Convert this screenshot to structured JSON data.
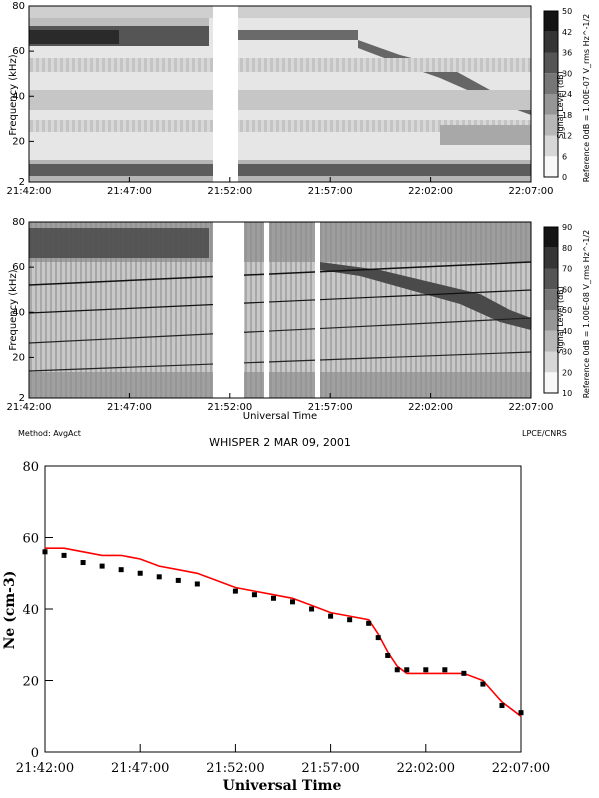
{
  "page": {
    "method": "Method: AvgAct",
    "title": "WHISPER 2      MAR 09, 2001",
    "credit": "LPCE/CNRS"
  },
  "chart_data": [
    {
      "type": "heatmap",
      "ylabel": "Frequency (kHz)",
      "xlabel": "",
      "x_ticks": [
        "21:42:00",
        "21:47:00",
        "21:52:00",
        "21:57:00",
        "22:02:00",
        "22:07:00"
      ],
      "y_ticks": [
        "2",
        "20",
        "40",
        "60",
        "80"
      ],
      "ylim": [
        2,
        80
      ],
      "colorbar": {
        "label": "Signal Level (dB)",
        "reference": "Reference 0dB = 1.00E-07 V_rms Hz^-1/2",
        "ticks": [
          "0",
          "6",
          "12",
          "18",
          "24",
          "30",
          "36",
          "42",
          "50"
        ]
      },
      "data_gaps": [
        [
          "21:51:10",
          "21:52:00"
        ]
      ]
    },
    {
      "type": "heatmap",
      "ylabel": "Frequency (kHz)",
      "xlabel": "Universal Time",
      "x_ticks": [
        "21:42:00",
        "21:47:00",
        "21:52:00",
        "21:57:00",
        "22:02:00",
        "22:07:00"
      ],
      "y_ticks": [
        "2",
        "20",
        "40",
        "60",
        "80"
      ],
      "ylim": [
        2,
        80
      ],
      "colorbar": {
        "label": "Signal Level (dB)",
        "reference": "Reference 0dB = 1.00E-08 V_rms Hz^-1/2",
        "ticks": [
          "10",
          "20",
          "30",
          "40",
          "50",
          "60",
          "70",
          "80",
          "90"
        ]
      },
      "data_gaps": [
        [
          "21:50:50",
          "21:51:50"
        ],
        [
          "21:52:50",
          "21:53:00"
        ],
        [
          "21:55:40",
          "21:55:50"
        ]
      ]
    },
    {
      "type": "line",
      "xlabel": "Universal Time",
      "ylabel": "Ne (cm-3)",
      "x_ticks": [
        "21:42:00",
        "21:47:00",
        "21:52:00",
        "21:57:00",
        "22:02:00",
        "22:07:00"
      ],
      "y_ticks": [
        "0",
        "20",
        "40",
        "60",
        "80"
      ],
      "xlim": [
        "21:42:00",
        "22:07:00"
      ],
      "ylim": [
        0,
        80
      ],
      "series": [
        {
          "marker": "line",
          "color": "#ff0000",
          "x": [
            "21:42:00",
            "21:43:00",
            "21:44:00",
            "21:45:00",
            "21:46:00",
            "21:47:00",
            "21:48:00",
            "21:49:00",
            "21:50:00",
            "21:52:00",
            "21:53:00",
            "21:54:00",
            "21:55:00",
            "21:56:00",
            "21:57:00",
            "21:58:00",
            "21:59:00",
            "21:59:30",
            "22:00:00",
            "22:00:30",
            "22:01:00",
            "22:02:00",
            "22:03:00",
            "22:04:00",
            "22:05:00",
            "22:06:00",
            "22:07:00"
          ],
          "y": [
            57,
            57,
            56,
            55,
            55,
            54,
            52,
            51,
            50,
            46,
            45,
            44,
            43,
            41,
            39,
            38,
            37,
            33,
            28,
            24,
            22,
            22,
            22,
            22,
            20,
            14,
            10
          ]
        },
        {
          "marker": "square",
          "color": "#000000",
          "x": [
            "21:42:00",
            "21:43:00",
            "21:44:00",
            "21:45:00",
            "21:46:00",
            "21:47:00",
            "21:48:00",
            "21:49:00",
            "21:50:00",
            "21:52:00",
            "21:53:00",
            "21:54:00",
            "21:55:00",
            "21:56:00",
            "21:57:00",
            "21:58:00",
            "21:59:00",
            "21:59:30",
            "22:00:00",
            "22:00:30",
            "22:01:00",
            "22:02:00",
            "22:03:00",
            "22:04:00",
            "22:05:00",
            "22:06:00",
            "22:07:00"
          ],
          "y": [
            56,
            55,
            53,
            52,
            51,
            50,
            49,
            48,
            47,
            45,
            44,
            43,
            42,
            40,
            38,
            37,
            36,
            32,
            27,
            23,
            23,
            23,
            23,
            22,
            19,
            13,
            11
          ]
        }
      ]
    }
  ]
}
